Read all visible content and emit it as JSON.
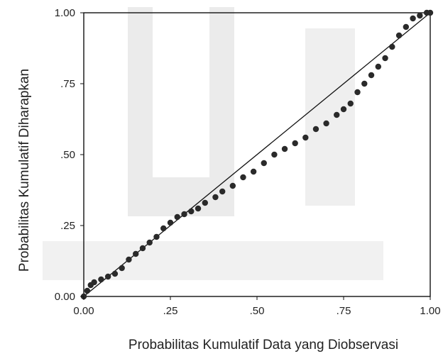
{
  "chart_data": {
    "type": "scatter",
    "title": "",
    "xlabel": "Probabilitas Kumulatif Data yang Diobservasi",
    "ylabel": "Probabilitas Kumulatif Diharapkan",
    "xlim": [
      0,
      1
    ],
    "ylim": [
      0,
      1
    ],
    "x_ticks": [
      0,
      0.25,
      0.5,
      0.75,
      1
    ],
    "y_ticks": [
      0,
      0.25,
      0.5,
      0.75,
      1
    ],
    "x_tick_labels": [
      "0.00",
      ".25",
      ".50",
      ".75",
      "1.00"
    ],
    "y_tick_labels": [
      "0.00",
      ".25",
      ".50",
      ".75",
      "1.00"
    ],
    "grid": false,
    "legend": "none",
    "reference_line": {
      "from": [
        0,
        0
      ],
      "to": [
        1,
        1
      ]
    },
    "series": [
      {
        "values": [
          [
            0.0,
            0.0
          ],
          [
            0.01,
            0.02
          ],
          [
            0.02,
            0.04
          ],
          [
            0.03,
            0.05
          ],
          [
            0.05,
            0.06
          ],
          [
            0.07,
            0.07
          ],
          [
            0.09,
            0.08
          ],
          [
            0.11,
            0.1
          ],
          [
            0.13,
            0.13
          ],
          [
            0.15,
            0.15
          ],
          [
            0.17,
            0.17
          ],
          [
            0.19,
            0.19
          ],
          [
            0.21,
            0.21
          ],
          [
            0.23,
            0.24
          ],
          [
            0.25,
            0.26
          ],
          [
            0.27,
            0.28
          ],
          [
            0.29,
            0.29
          ],
          [
            0.31,
            0.3
          ],
          [
            0.33,
            0.31
          ],
          [
            0.35,
            0.33
          ],
          [
            0.38,
            0.35
          ],
          [
            0.4,
            0.37
          ],
          [
            0.43,
            0.39
          ],
          [
            0.46,
            0.42
          ],
          [
            0.49,
            0.44
          ],
          [
            0.52,
            0.47
          ],
          [
            0.55,
            0.5
          ],
          [
            0.58,
            0.52
          ],
          [
            0.61,
            0.54
          ],
          [
            0.64,
            0.56
          ],
          [
            0.67,
            0.59
          ],
          [
            0.7,
            0.61
          ],
          [
            0.73,
            0.64
          ],
          [
            0.75,
            0.66
          ],
          [
            0.77,
            0.68
          ],
          [
            0.79,
            0.72
          ],
          [
            0.81,
            0.75
          ],
          [
            0.83,
            0.78
          ],
          [
            0.85,
            0.81
          ],
          [
            0.87,
            0.84
          ],
          [
            0.89,
            0.88
          ],
          [
            0.91,
            0.92
          ],
          [
            0.93,
            0.95
          ],
          [
            0.95,
            0.98
          ],
          [
            0.97,
            0.99
          ],
          [
            0.99,
            1.0
          ],
          [
            1.0,
            1.0
          ]
        ]
      }
    ],
    "colors": {
      "marker": "#2a2a2a",
      "line": "#111111",
      "axis": "#111111"
    }
  }
}
